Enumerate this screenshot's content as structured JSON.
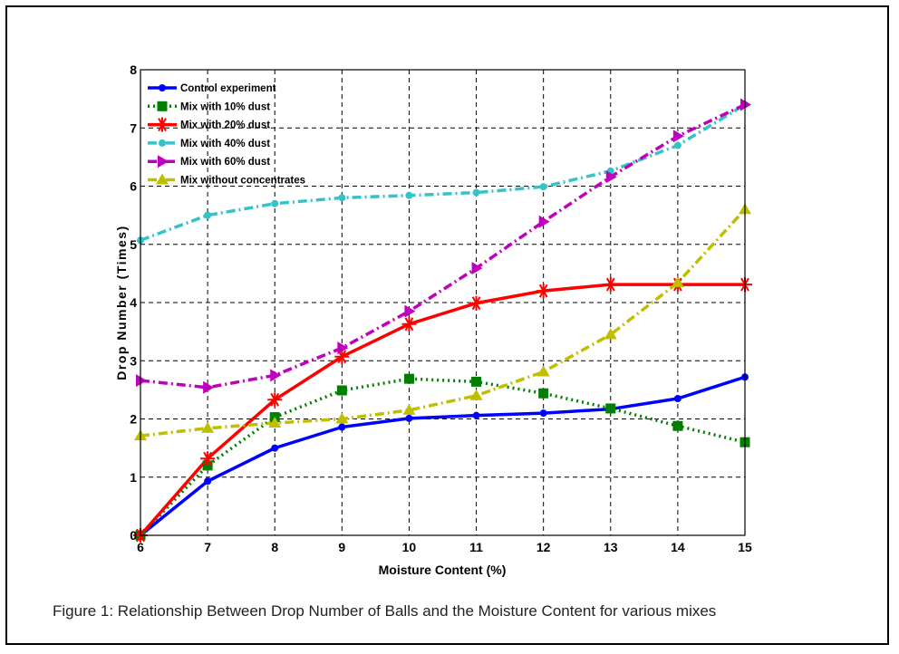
{
  "chart_data": {
    "type": "line",
    "title": "",
    "xlabel": "Moisture Content (%)",
    "ylabel": "Drop Number (Times)",
    "x": [
      6,
      7,
      8,
      9,
      10,
      11,
      12,
      13,
      14,
      15
    ],
    "xlim": [
      6,
      15
    ],
    "ylim": [
      0,
      8
    ],
    "xticks": [
      "6",
      "7",
      "8",
      "9",
      "10",
      "11",
      "12",
      "13",
      "14",
      "15"
    ],
    "yticks": [
      "0",
      "1",
      "2",
      "3",
      "4",
      "5",
      "6",
      "7",
      "8"
    ],
    "grid": true,
    "legend_position": "top-left",
    "series": [
      {
        "name": "Control experiment",
        "color": "#0000ff",
        "line_style": "solid",
        "marker": "dot",
        "values": [
          0,
          0.93,
          1.5,
          1.86,
          2.01,
          2.06,
          2.1,
          2.17,
          2.35,
          2.72
        ]
      },
      {
        "name": "Mix with 10% dust",
        "color": "#007f00",
        "line_style": "dotted",
        "marker": "square",
        "values": [
          0,
          1.2,
          2.03,
          2.49,
          2.69,
          2.64,
          2.44,
          2.18,
          1.88,
          1.6
        ]
      },
      {
        "name": "Mix with 20% dust",
        "color": "#ff0000",
        "line_style": "solid",
        "marker": "star",
        "values": [
          0,
          1.32,
          2.33,
          3.07,
          3.63,
          3.99,
          4.2,
          4.31,
          4.31,
          4.31
        ]
      },
      {
        "name": "Mix with 40% dust",
        "color": "#33c3c8",
        "line_style": "dashdot",
        "marker": "dot",
        "values": [
          5.07,
          5.5,
          5.7,
          5.8,
          5.84,
          5.89,
          5.99,
          6.26,
          6.7,
          7.4
        ]
      },
      {
        "name": "Mix with 60% dust",
        "color": "#bf00bf",
        "line_style": "dashdot",
        "marker": "triangle-right",
        "values": [
          2.66,
          2.54,
          2.75,
          3.22,
          3.85,
          4.59,
          5.39,
          6.16,
          6.86,
          7.4
        ]
      },
      {
        "name": "Mix without concentrates",
        "color": "#bfbf00",
        "line_style": "dashdot",
        "marker": "triangle-up",
        "values": [
          1.71,
          1.84,
          1.93,
          2.0,
          2.15,
          2.4,
          2.81,
          3.45,
          4.34,
          5.6
        ]
      }
    ]
  },
  "caption": "Figure 1: Relationship Between Drop Number of Balls and the Moisture Content for various mixes"
}
